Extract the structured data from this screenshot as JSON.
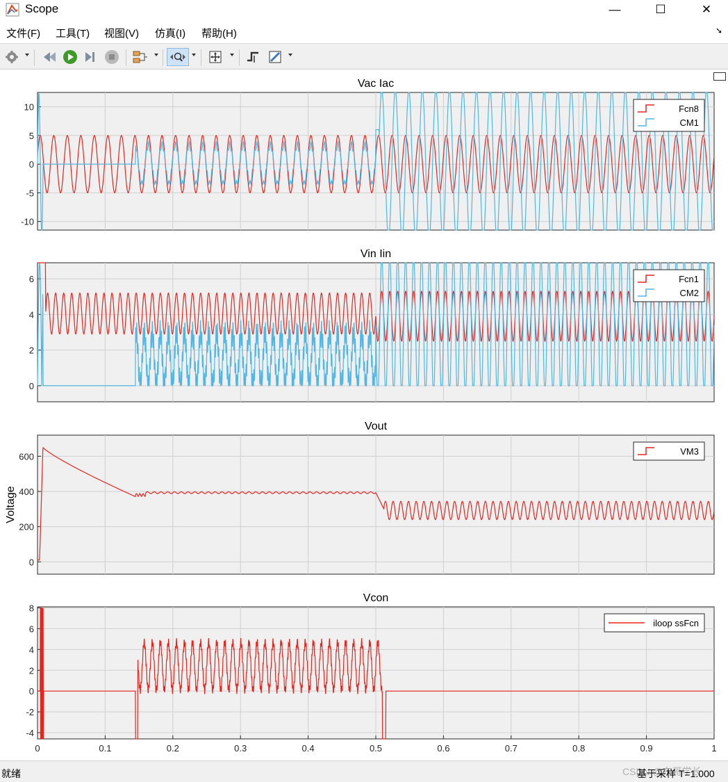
{
  "window": {
    "title": "Scope"
  },
  "window_controls": {
    "minimize": "—",
    "maximize": "☐",
    "close": "✕"
  },
  "menu": [
    "文件(F)",
    "工具(T)",
    "视图(V)",
    "仿真(I)",
    "帮助(H)"
  ],
  "toolbar": {
    "icons": [
      "gear-icon",
      "step-back-icon",
      "run-icon",
      "step-forward-icon",
      "stop-icon",
      "signal-select-icon",
      "zoom-icon",
      "fit-view-icon",
      "triggers-icon",
      "measurement-icon"
    ]
  },
  "status": {
    "left": "就绪",
    "right": "基于采样 T=1.000",
    "watermark": "CSDN @东哥学长"
  },
  "colors": {
    "red": "#e8241d",
    "blue": "#4fb6e6",
    "plot_bg": "#f0f0f0",
    "grid": "#cfcfcf"
  },
  "chart_data": [
    {
      "type": "line",
      "title": "Vac Iac",
      "ylabel": "",
      "xlim": [
        0,
        1
      ],
      "ylim": [
        -11.5,
        12.5
      ],
      "yticks": [
        -10,
        -5,
        0,
        5,
        10
      ],
      "xticks": [],
      "legend": "top-right",
      "grid": true,
      "series": [
        {
          "name": "Fcn8",
          "color": "#e8241d",
          "description": "sine, amplitude 5, ~50 cycles over 0-1 s"
        },
        {
          "name": "CM1",
          "color": "#4fb6e6",
          "description": "amplitude ~3.5 from 0.15 to 0.5 s, then ~12 (clipped) from 0.5 to 1 s"
        }
      ]
    },
    {
      "type": "line",
      "title": "Vin Iin",
      "ylabel": "",
      "xlim": [
        0,
        1
      ],
      "ylim": [
        -0.9,
        6.9
      ],
      "yticks": [
        0,
        2,
        4,
        6
      ],
      "xticks": [],
      "legend": "top-right",
      "grid": true,
      "series": [
        {
          "name": "Fcn1",
          "color": "#e8241d",
          "description": "rectified ripple between ~2.9 and 5.2 until 0.5 s, then between ~2.5 and 5.3"
        },
        {
          "name": "CM2",
          "color": "#4fb6e6",
          "description": "0 until 0.145 s, ripple 0-3 until 0.5 s, then 0 to 6.9 (clipped)"
        }
      ]
    },
    {
      "type": "line",
      "title": "Vout",
      "ylabel": "Voltage",
      "xlim": [
        0,
        1
      ],
      "ylim": [
        -70,
        720
      ],
      "yticks": [
        0,
        200,
        400,
        600
      ],
      "xticks": [],
      "legend": "top-right",
      "grid": true,
      "series": [
        {
          "name": "VM3",
          "color": "#e8241d",
          "description": "rises to ~650 at 0.01 s, decays to ~370 at 0.145 s, holds ~395 until 0.5 s, then ripples 240-345"
        }
      ]
    },
    {
      "type": "line",
      "title": "Vcon",
      "ylabel": "",
      "xlim": [
        0,
        1
      ],
      "ylim": [
        -4.6,
        8.1
      ],
      "yticks": [
        -4,
        -2,
        0,
        2,
        4,
        6,
        8
      ],
      "xticks": [
        0,
        0.1,
        0.2,
        0.3,
        0.4,
        0.5,
        0.6,
        0.7,
        0.8,
        0.9,
        1
      ],
      "legend": "top-right",
      "grid": true,
      "series": [
        {
          "name": "iloop ssFcn",
          "color": "#e8241d",
          "description": "spikes near 0.005 s, ripple between ~0 and ~4.8 from 0.145 to 0.51 s, 0 elsewhere"
        }
      ]
    }
  ]
}
